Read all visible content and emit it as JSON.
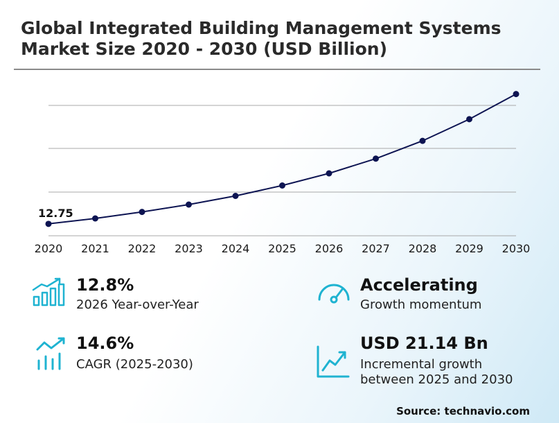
{
  "header": {
    "title_line1": "Global Integrated Building Management Systems",
    "title_line2": "Market Size 2020 - 2030 (USD Billion)"
  },
  "chart_data": {
    "type": "line",
    "title": "Global Integrated Building Management Systems Market Size 2020 - 2030 (USD Billion)",
    "x": [
      "2020",
      "2021",
      "2022",
      "2023",
      "2024",
      "2025",
      "2026",
      "2027",
      "2028",
      "2029",
      "2030"
    ],
    "series": [
      {
        "values": [
          12.75,
          14.0,
          15.5,
          17.2,
          19.2,
          21.6,
          24.4,
          27.8,
          31.9,
          36.9,
          42.7
        ]
      }
    ],
    "ylim": [
      10,
      46
    ],
    "grid": true,
    "annotations": [
      {
        "x": "2020",
        "text": "12.75"
      }
    ],
    "line_color": "#0d1452"
  },
  "stats": {
    "yoy": {
      "value": "12.8%",
      "label": "2026 Year-over-Year",
      "icon": "bar-growth-icon"
    },
    "momentum": {
      "value": "Accelerating",
      "label": "Growth momentum",
      "icon": "gauge-icon"
    },
    "cagr": {
      "value": "14.6%",
      "label": "CAGR (2025-2030)",
      "icon": "bar-trend-icon"
    },
    "incremental": {
      "value": "USD 21.14 Bn",
      "label_line1": "Incremental growth",
      "label_line2": "between 2025 and 2030",
      "icon": "line-trend-icon"
    }
  },
  "colors": {
    "accent": "#1fb3d1",
    "line": "#0d1452"
  },
  "source": "Source: technavio.com"
}
